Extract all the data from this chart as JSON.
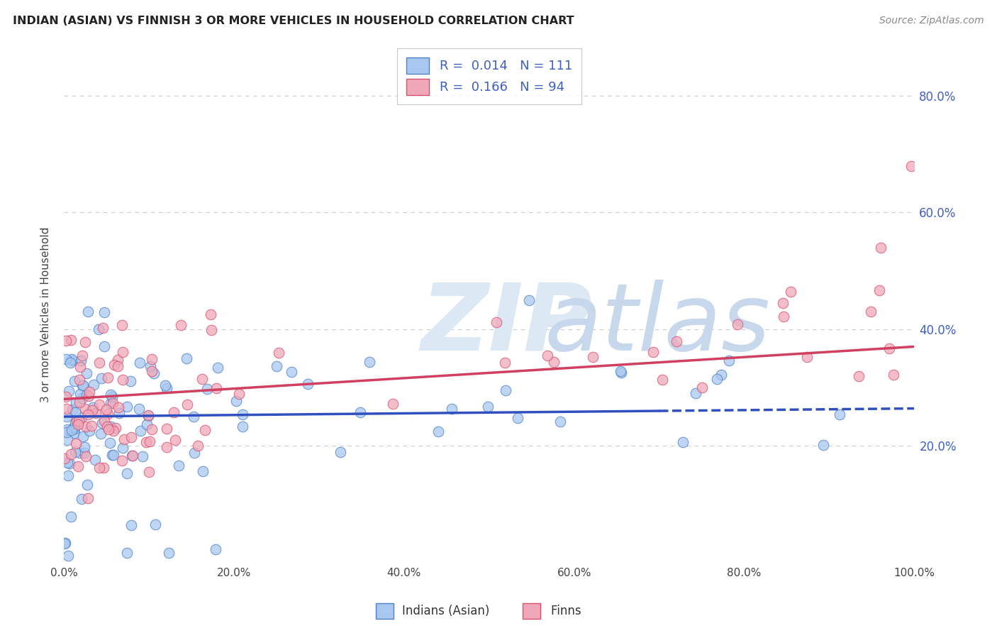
{
  "title": "INDIAN (ASIAN) VS FINNISH 3 OR MORE VEHICLES IN HOUSEHOLD CORRELATION CHART",
  "source": "Source: ZipAtlas.com",
  "ylabel": "3 or more Vehicles in Household",
  "legend_label1": "Indians (Asian)",
  "legend_label2": "Finns",
  "R1": "0.014",
  "N1": "111",
  "R2": "0.166",
  "N2": "94",
  "color_indian_fill": "#a8c8f0",
  "color_indian_edge": "#5080c8",
  "color_finn_fill": "#f0a8b8",
  "color_finn_edge": "#d85070",
  "color_line_indian": "#3050c0",
  "color_line_finn": "#d04060",
  "right_axis_color": "#4060c0",
  "grid_color": "#cccccc",
  "title_color": "#222222",
  "source_color": "#888888",
  "watermark_color1": "#dde8f5",
  "watermark_color2": "#c8d8ec",
  "indian_line_start_x": 0,
  "indian_line_start_y": 25.0,
  "indian_line_end_x": 100,
  "indian_line_end_y": 26.4,
  "finn_line_start_x": 0,
  "finn_line_start_y": 28.0,
  "finn_line_end_x": 100,
  "finn_line_end_y": 37.0,
  "indian_dashed_from_x": 70,
  "xlim": [
    0,
    100
  ],
  "ylim": [
    0,
    85
  ]
}
